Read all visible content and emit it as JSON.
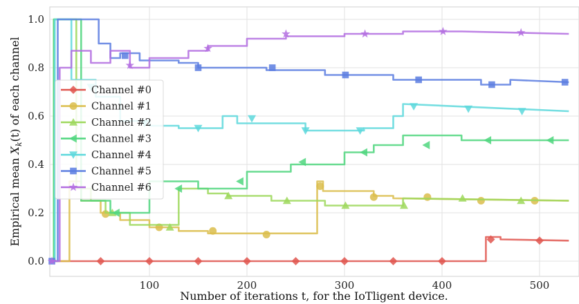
{
  "chart_data": {
    "type": "line",
    "title": "",
    "xlabel": "Number of iterations t, for the IoTligent device.",
    "ylabel": "Empirical mean X_k(t) of each channel",
    "xlim": [
      0,
      530
    ],
    "ylim": [
      -0.05,
      1.05
    ],
    "xticks": [
      100,
      200,
      300,
      400,
      500
    ],
    "yticks": [
      0.0,
      0.2,
      0.4,
      0.6,
      0.8,
      1.0
    ],
    "grid": true,
    "legend_position": "center-left",
    "series": [
      {
        "name": "Channel #0",
        "color": "#e0564f",
        "marker": "diamond",
        "x": [
          0,
          445,
          445,
          460,
          460,
          530
        ],
        "y": [
          0.0,
          0.0,
          0.1,
          0.1,
          0.09,
          0.085
        ],
        "marker_x": [
          50,
          100,
          150,
          200,
          250,
          300,
          350,
          400,
          450,
          500
        ],
        "marker_y": [
          0.0,
          0.0,
          0.0,
          0.0,
          0.0,
          0.0,
          0.0,
          0.0,
          0.09,
          0.085
        ]
      },
      {
        "name": "Channel #1",
        "color": "#dbbd4b",
        "marker": "circle",
        "x": [
          0,
          18,
          18,
          30,
          30,
          50,
          50,
          70,
          70,
          100,
          100,
          130,
          130,
          160,
          160,
          272,
          272,
          278,
          278,
          330,
          330,
          350,
          350,
          530
        ],
        "y": [
          0.0,
          0.0,
          0.33,
          0.33,
          0.25,
          0.25,
          0.2,
          0.2,
          0.17,
          0.17,
          0.14,
          0.14,
          0.125,
          0.125,
          0.115,
          0.115,
          0.33,
          0.33,
          0.29,
          0.29,
          0.27,
          0.27,
          0.26,
          0.25
        ],
        "marker_x": [
          55,
          110,
          165,
          220,
          275,
          330,
          385,
          440,
          495
        ],
        "marker_y": [
          0.195,
          0.14,
          0.125,
          0.11,
          0.31,
          0.265,
          0.265,
          0.25,
          0.25
        ]
      },
      {
        "name": "Channel #2",
        "color": "#9ed85c",
        "marker": "triangle-up",
        "x": [
          0,
          2,
          2,
          25,
          25,
          40,
          40,
          55,
          55,
          80,
          80,
          130,
          130,
          160,
          160,
          180,
          180,
          225,
          225,
          280,
          280,
          360,
          360,
          530
        ],
        "y": [
          0.0,
          0.0,
          1.0,
          1.0,
          0.3,
          0.3,
          0.25,
          0.25,
          0.2,
          0.2,
          0.15,
          0.15,
          0.3,
          0.3,
          0.28,
          0.28,
          0.27,
          0.27,
          0.25,
          0.25,
          0.23,
          0.23,
          0.26,
          0.25
        ],
        "marker_x": [
          62,
          121,
          181,
          241,
          301,
          361,
          421,
          481
        ],
        "marker_y": [
          0.2,
          0.14,
          0.27,
          0.25,
          0.23,
          0.23,
          0.26,
          0.25
        ],
        "marker_shape_overrides": []
      },
      {
        "name": "Channel #3",
        "color": "#4fd67e",
        "marker": "triangle-left",
        "x": [
          0,
          2,
          2,
          30,
          30,
          60,
          60,
          100,
          100,
          150,
          150,
          200,
          200,
          245,
          245,
          300,
          300,
          330,
          330,
          360,
          360,
          420,
          420,
          530
        ],
        "y": [
          0.0,
          0.0,
          1.0,
          1.0,
          0.25,
          0.25,
          0.2,
          0.2,
          0.33,
          0.33,
          0.3,
          0.3,
          0.37,
          0.37,
          0.4,
          0.4,
          0.45,
          0.45,
          0.48,
          0.48,
          0.52,
          0.52,
          0.5,
          0.5
        ],
        "marker_x": [
          66,
          130,
          193,
          257,
          320,
          384,
          447,
          511
        ],
        "marker_y": [
          0.2,
          0.3,
          0.33,
          0.41,
          0.45,
          0.48,
          0.5,
          0.5
        ],
        "marker_shape_overrides": []
      },
      {
        "name": "Channel #4",
        "color": "#5dd8dc",
        "marker": "triangle-down",
        "x": [
          0,
          3,
          3,
          20,
          20,
          45,
          45,
          70,
          70,
          100,
          100,
          130,
          130,
          175,
          175,
          190,
          190,
          260,
          260,
          320,
          320,
          350,
          350,
          360,
          360,
          530
        ],
        "y": [
          0.0,
          0.0,
          1.0,
          1.0,
          0.75,
          0.75,
          0.68,
          0.68,
          0.58,
          0.58,
          0.56,
          0.56,
          0.55,
          0.55,
          0.6,
          0.6,
          0.57,
          0.57,
          0.54,
          0.54,
          0.55,
          0.55,
          0.6,
          0.6,
          0.65,
          0.62
        ],
        "marker_x": [
          40,
          95,
          150,
          205,
          260,
          316,
          371,
          427,
          482
        ],
        "marker_y": [
          0.72,
          0.57,
          0.55,
          0.59,
          0.54,
          0.54,
          0.64,
          0.63,
          0.62
        ]
      },
      {
        "name": "Channel #5",
        "color": "#5b7de0",
        "marker": "square",
        "x": [
          0,
          6,
          6,
          15,
          15,
          48,
          48,
          60,
          60,
          70,
          70,
          90,
          90,
          130,
          130,
          150,
          150,
          220,
          220,
          280,
          280,
          350,
          350,
          440,
          440,
          470,
          470,
          530
        ],
        "y": [
          0.0,
          0.0,
          1.0,
          1.0,
          1.0,
          1.0,
          0.9,
          0.9,
          0.84,
          0.84,
          0.86,
          0.86,
          0.83,
          0.83,
          0.82,
          0.82,
          0.8,
          0.8,
          0.79,
          0.79,
          0.77,
          0.77,
          0.75,
          0.75,
          0.73,
          0.73,
          0.75,
          0.74
        ],
        "marker_x": [
          0,
          75,
          150,
          226,
          301,
          376,
          451,
          526
        ],
        "marker_y": [
          0.0,
          0.85,
          0.8,
          0.8,
          0.77,
          0.75,
          0.73,
          0.74
        ]
      },
      {
        "name": "Channel #6",
        "color": "#b36de0",
        "marker": "star",
        "x": [
          0,
          8,
          8,
          20,
          20,
          40,
          40,
          60,
          60,
          80,
          80,
          100,
          100,
          140,
          140,
          160,
          160,
          200,
          200,
          240,
          240,
          300,
          300,
          360,
          360,
          420,
          420,
          530
        ],
        "y": [
          0.0,
          0.0,
          0.8,
          0.8,
          0.87,
          0.87,
          0.82,
          0.82,
          0.87,
          0.87,
          0.8,
          0.8,
          0.84,
          0.84,
          0.87,
          0.87,
          0.89,
          0.89,
          0.92,
          0.92,
          0.93,
          0.93,
          0.94,
          0.94,
          0.95,
          0.95,
          0.95,
          0.94
        ],
        "marker_x": [
          0,
          80,
          160,
          240,
          321,
          401,
          481
        ],
        "marker_y": [
          0.0,
          0.81,
          0.88,
          0.94,
          0.94,
          0.95,
          0.945
        ]
      }
    ]
  }
}
